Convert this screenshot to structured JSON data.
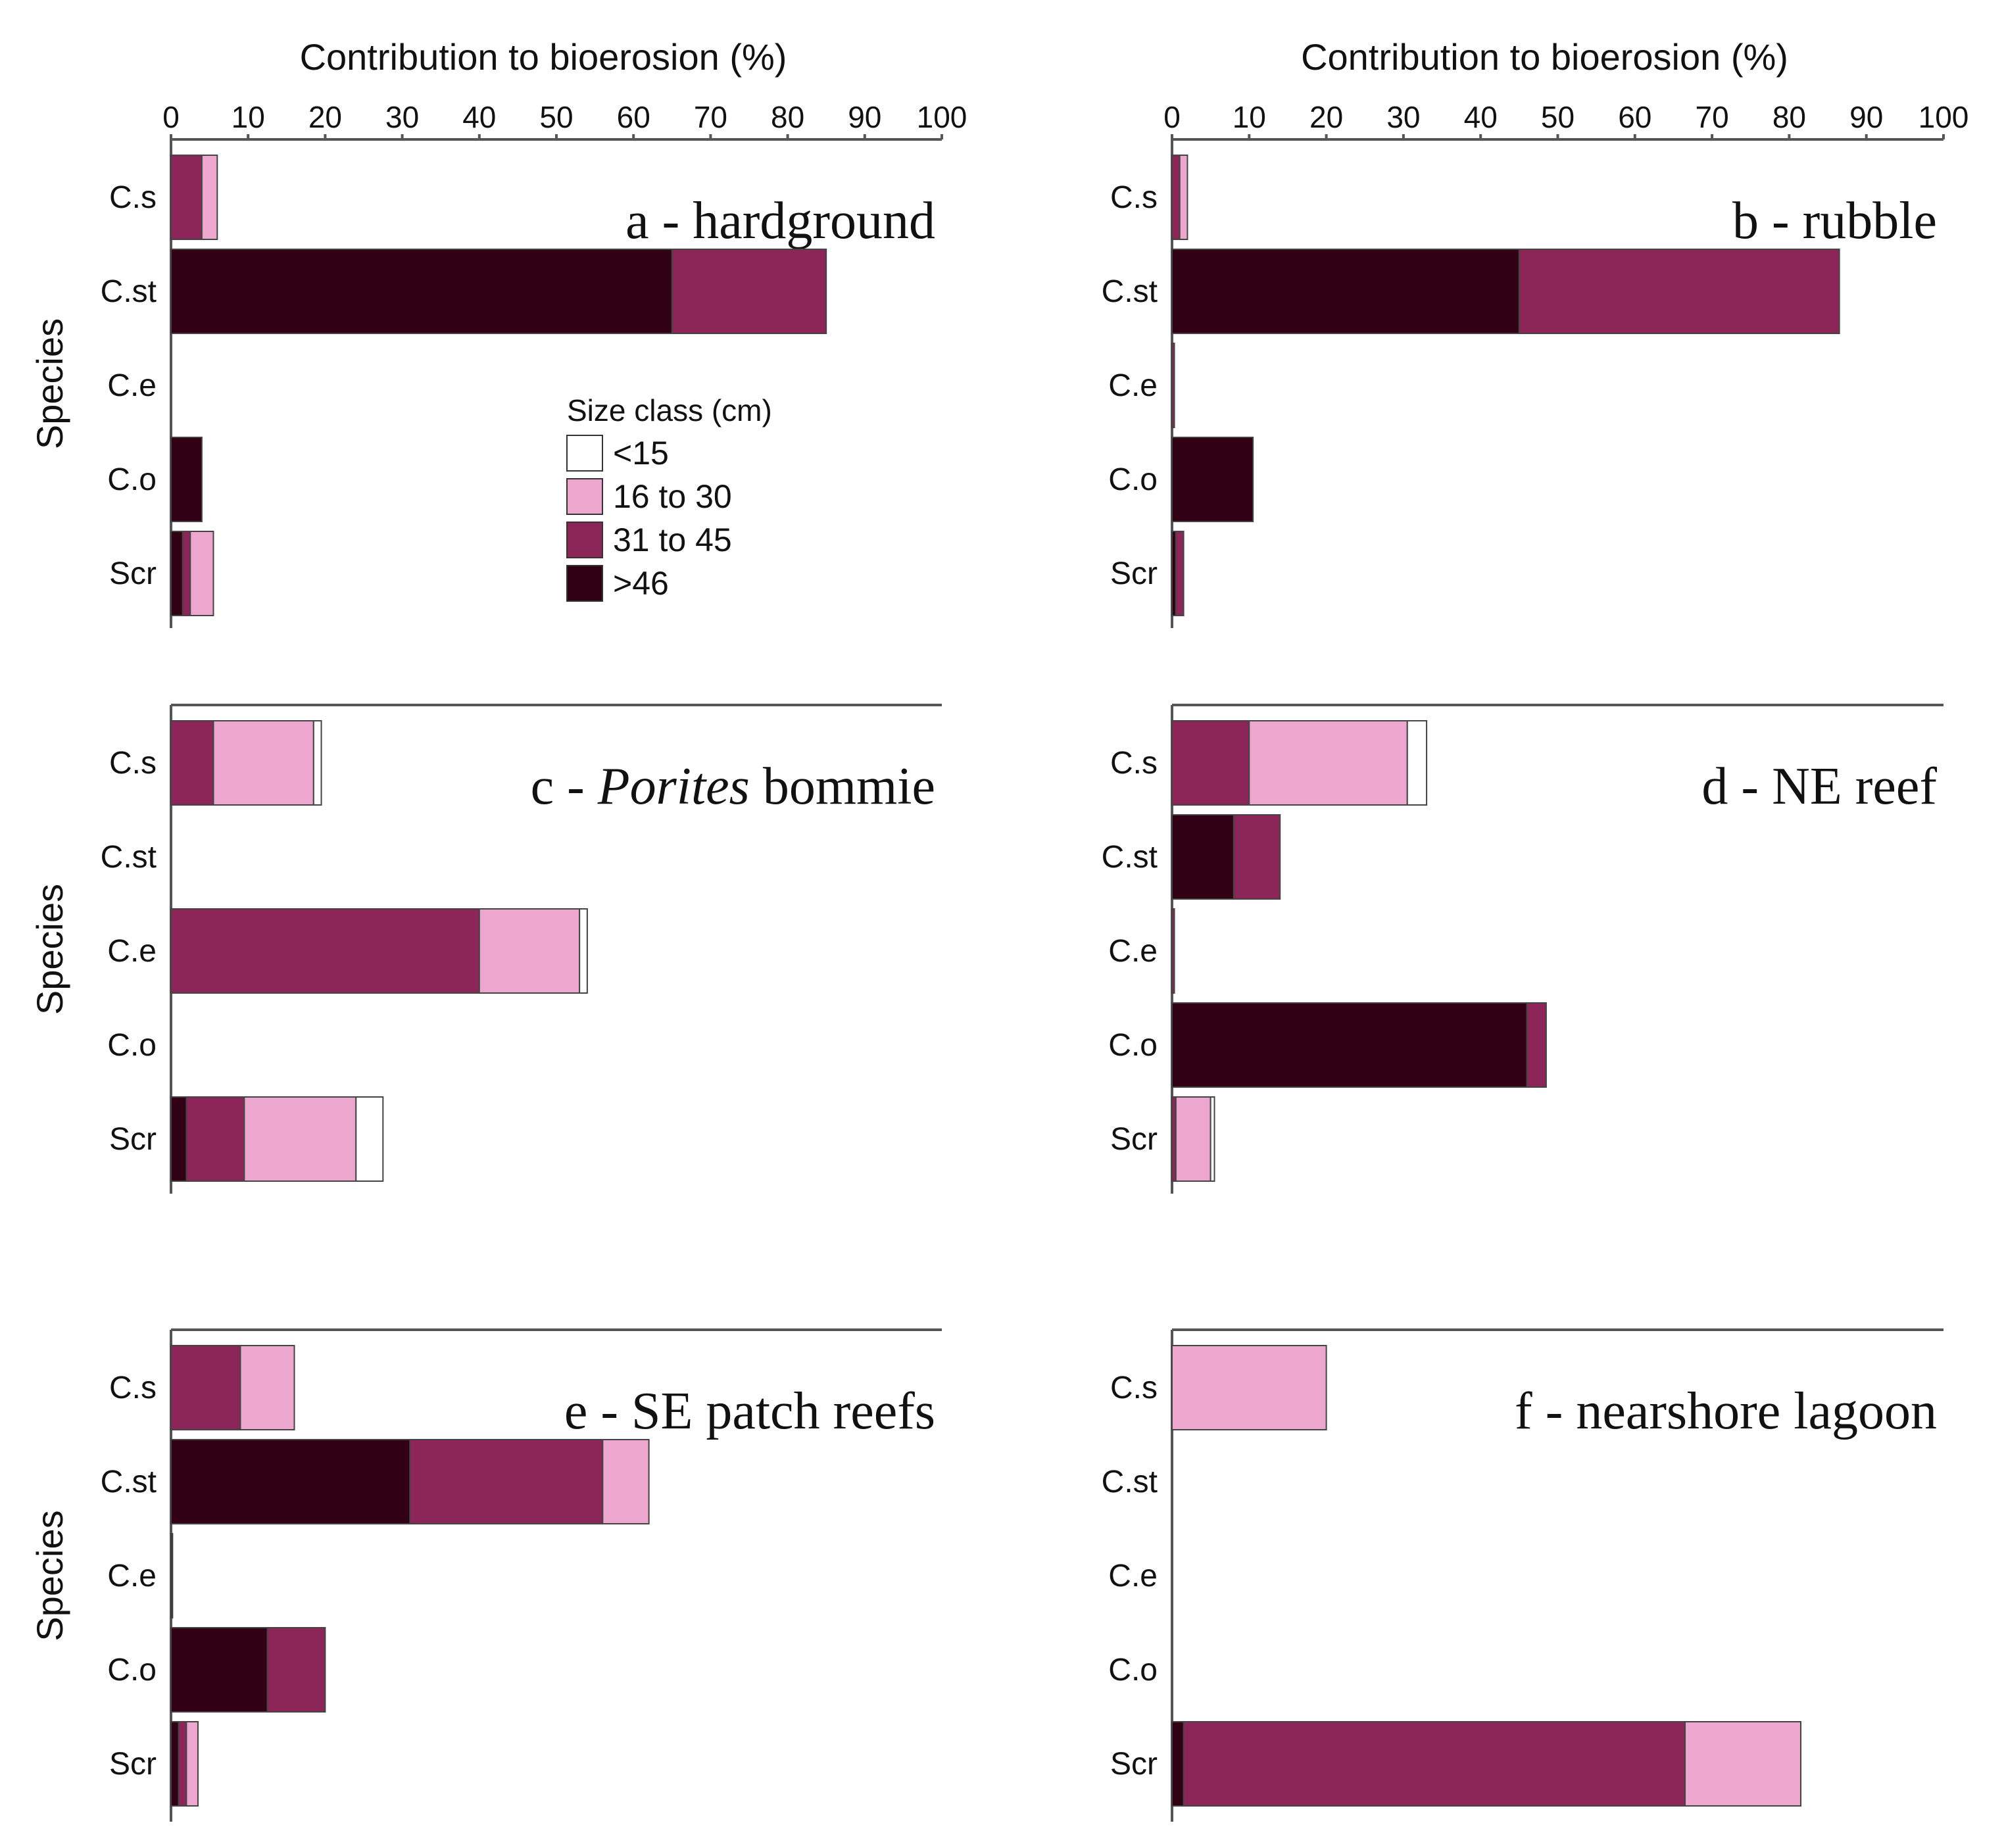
{
  "chart_data": {
    "type": "bar",
    "orientation": "horizontal",
    "stacked": true,
    "xlabel": "Contribution to bioerosion (%)",
    "ylabel": "Species",
    "xlim": [
      0,
      100
    ],
    "x_ticks": [
      "0",
      "10",
      "20",
      "30",
      "40",
      "50",
      "60",
      "70",
      "80",
      "90",
      "100"
    ],
    "categories": [
      "C.s",
      "C.st",
      "C.e",
      "C.o",
      "Scr"
    ],
    "legend": {
      "title": "Size class (cm)",
      "entries": [
        {
          "key": "lt15",
          "label": "<15",
          "color": "#ffffff"
        },
        {
          "key": "s16_30",
          "label": "16 to 30",
          "color": "#eda6cd"
        },
        {
          "key": "s31_45",
          "label": "31 to 45",
          "color": "#8c2659"
        },
        {
          "key": "gt46",
          "label": ">46",
          "color": "#320015"
        }
      ]
    },
    "panels": [
      {
        "id": "a",
        "title": "a - hardground",
        "title_italic": "",
        "title_rest": "",
        "bars": [
          {
            "category": "C.s",
            "gt46": 0,
            "s31_45": 4,
            "s16_30": 2,
            "lt15": 0
          },
          {
            "category": "C.st",
            "gt46": 65,
            "s31_45": 20,
            "s16_30": 0,
            "lt15": 0
          },
          {
            "category": "C.e",
            "gt46": 0,
            "s31_45": 0,
            "s16_30": 0,
            "lt15": 0
          },
          {
            "category": "C.o",
            "gt46": 4,
            "s31_45": 0,
            "s16_30": 0,
            "lt15": 0
          },
          {
            "category": "Scr",
            "gt46": 1.5,
            "s31_45": 1,
            "s16_30": 3,
            "lt15": 0
          }
        ]
      },
      {
        "id": "b",
        "title": "b - rubble",
        "title_italic": "",
        "title_rest": "",
        "bars": [
          {
            "category": "C.s",
            "gt46": 0,
            "s31_45": 1,
            "s16_30": 1,
            "lt15": 0
          },
          {
            "category": "C.st",
            "gt46": 45,
            "s31_45": 41.5,
            "s16_30": 0,
            "lt15": 0
          },
          {
            "category": "C.e",
            "gt46": 0,
            "s31_45": 0.3,
            "s16_30": 0,
            "lt15": 0
          },
          {
            "category": "C.o",
            "gt46": 10.5,
            "s31_45": 0,
            "s16_30": 0,
            "lt15": 0
          },
          {
            "category": "Scr",
            "gt46": 0.5,
            "s31_45": 1,
            "s16_30": 0,
            "lt15": 0
          }
        ]
      },
      {
        "id": "c",
        "title": "c - ",
        "title_italic": "Porites",
        "title_rest": " bommie",
        "bars": [
          {
            "category": "C.s",
            "gt46": 0,
            "s31_45": 5.5,
            "s16_30": 13,
            "lt15": 1
          },
          {
            "category": "C.st",
            "gt46": 0,
            "s31_45": 0,
            "s16_30": 0,
            "lt15": 0
          },
          {
            "category": "C.e",
            "gt46": 0,
            "s31_45": 40,
            "s16_30": 13,
            "lt15": 1
          },
          {
            "category": "C.o",
            "gt46": 0,
            "s31_45": 0,
            "s16_30": 0,
            "lt15": 0
          },
          {
            "category": "Scr",
            "gt46": 2,
            "s31_45": 7.5,
            "s16_30": 14.5,
            "lt15": 3.5
          }
        ]
      },
      {
        "id": "d",
        "title": "d - NE reef",
        "title_italic": "",
        "title_rest": "",
        "bars": [
          {
            "category": "C.s",
            "gt46": 0,
            "s31_45": 10,
            "s16_30": 20.5,
            "lt15": 2.5
          },
          {
            "category": "C.st",
            "gt46": 8,
            "s31_45": 6,
            "s16_30": 0,
            "lt15": 0
          },
          {
            "category": "C.e",
            "gt46": 0,
            "s31_45": 0.3,
            "s16_30": 0,
            "lt15": 0
          },
          {
            "category": "C.o",
            "gt46": 46,
            "s31_45": 2.5,
            "s16_30": 0,
            "lt15": 0
          },
          {
            "category": "Scr",
            "gt46": 0,
            "s31_45": 0.5,
            "s16_30": 4.5,
            "lt15": 0.5
          }
        ]
      },
      {
        "id": "e",
        "title": "e - SE patch reefs",
        "title_italic": "",
        "title_rest": "",
        "bars": [
          {
            "category": "C.s",
            "gt46": 0,
            "s31_45": 9,
            "s16_30": 7,
            "lt15": 0
          },
          {
            "category": "C.st",
            "gt46": 31,
            "s31_45": 25,
            "s16_30": 6,
            "lt15": 0
          },
          {
            "category": "C.e",
            "gt46": 0.2,
            "s31_45": 0,
            "s16_30": 0,
            "lt15": 0
          },
          {
            "category": "C.o",
            "gt46": 12.5,
            "s31_45": 7.5,
            "s16_30": 0,
            "lt15": 0
          },
          {
            "category": "Scr",
            "gt46": 1,
            "s31_45": 1,
            "s16_30": 1.5,
            "lt15": 0
          }
        ]
      },
      {
        "id": "f",
        "title": "f - nearshore lagoon",
        "title_italic": "",
        "title_rest": "",
        "bars": [
          {
            "category": "C.s",
            "gt46": 0,
            "s31_45": 0,
            "s16_30": 20,
            "lt15": 0
          },
          {
            "category": "C.st",
            "gt46": 0,
            "s31_45": 0,
            "s16_30": 0,
            "lt15": 0
          },
          {
            "category": "C.e",
            "gt46": 0,
            "s31_45": 0,
            "s16_30": 0,
            "lt15": 0
          },
          {
            "category": "C.o",
            "gt46": 0,
            "s31_45": 0,
            "s16_30": 0,
            "lt15": 0
          },
          {
            "category": "Scr",
            "gt46": 1.5,
            "s31_45": 65,
            "s16_30": 15,
            "lt15": 0
          }
        ]
      }
    ]
  }
}
